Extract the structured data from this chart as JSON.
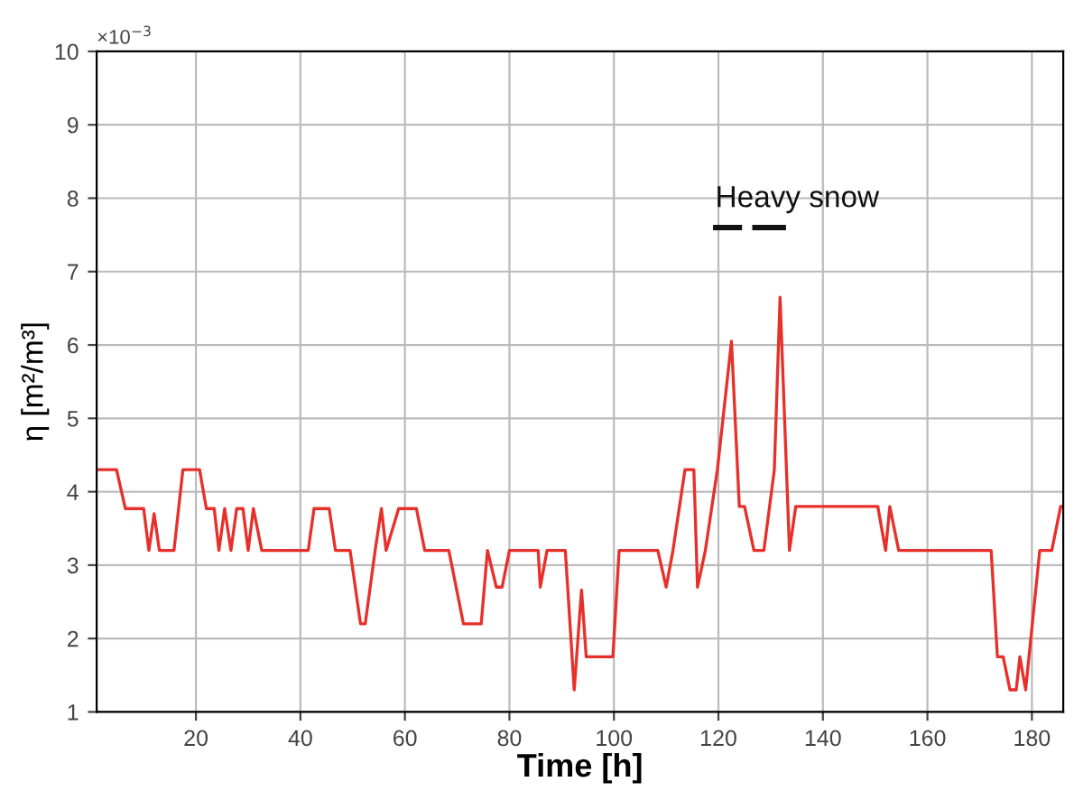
{
  "chart_data": {
    "type": "line",
    "xlabel": "Time [h]",
    "ylabel": "η [m²/m³]",
    "annotations": [
      "×10$^{−3}$",
      "Heavy snow"
    ],
    "xlim": [
      1,
      186
    ],
    "ylim": [
      1,
      10
    ],
    "xticks": [
      20,
      40,
      60,
      80,
      100,
      120,
      140,
      160,
      180
    ],
    "yticks": [
      1,
      2,
      3,
      4,
      5,
      6,
      7,
      8,
      9,
      10
    ],
    "grid": true,
    "line_style": "solid",
    "marker": "none",
    "series": [
      {
        "color": "#e8302a",
        "x": [
          1,
          4.8,
          6.5,
          10,
          11,
          12,
          13,
          15.8,
          17.5,
          20.7,
          22,
          23.5,
          24.4,
          25.5,
          26.7,
          27.8,
          29,
          30,
          31,
          32.6,
          41.5,
          42.6,
          45.5,
          46.7,
          49.5,
          51.5,
          52.4,
          54.3,
          55.5,
          56.4,
          58.8,
          62.2,
          63.8,
          68.4,
          71.2,
          74.6,
          75.8,
          77.5,
          78.6,
          80,
          85.5,
          85.9,
          87.2,
          90.7,
          92.4,
          93.8,
          94.7,
          99.8,
          101,
          108.4,
          110,
          111.3,
          113.6,
          115.3,
          116,
          117.5,
          119.8,
          122.5,
          124,
          125,
          126.8,
          128.7,
          130.7,
          131.8,
          133.6,
          134.8,
          150.5,
          152,
          152.8,
          154.5,
          172.2,
          173.4,
          174.5,
          175.8,
          177,
          177.7,
          178.8,
          181.5,
          183.8,
          185.5,
          186
        ],
        "values": [
          4.3,
          4.3,
          3.77,
          3.77,
          3.2,
          3.7,
          3.2,
          3.2,
          4.3,
          4.3,
          3.77,
          3.77,
          3.2,
          3.77,
          3.2,
          3.77,
          3.77,
          3.2,
          3.77,
          3.2,
          3.2,
          3.77,
          3.77,
          3.2,
          3.2,
          2.2,
          2.2,
          3.2,
          3.77,
          3.2,
          3.77,
          3.77,
          3.2,
          3.2,
          2.2,
          2.2,
          3.2,
          2.7,
          2.7,
          3.2,
          3.2,
          2.7,
          3.2,
          3.2,
          1.3,
          2.66,
          1.75,
          1.75,
          3.2,
          3.2,
          2.7,
          3.2,
          4.3,
          4.3,
          2.7,
          3.2,
          4.3,
          6.05,
          3.8,
          3.8,
          3.2,
          3.2,
          4.3,
          6.65,
          3.2,
          3.8,
          3.8,
          3.2,
          3.8,
          3.2,
          3.2,
          1.75,
          1.75,
          1.3,
          1.3,
          1.75,
          1.3,
          3.2,
          3.2,
          3.8,
          3.8
        ]
      },
      {
        "color": "#111111",
        "x": [
          119.5,
          124
        ],
        "values": [
          7.6,
          7.6
        ]
      },
      {
        "color": "#111111",
        "x": [
          127,
          132.4
        ],
        "values": [
          7.6,
          7.6
        ]
      }
    ]
  }
}
